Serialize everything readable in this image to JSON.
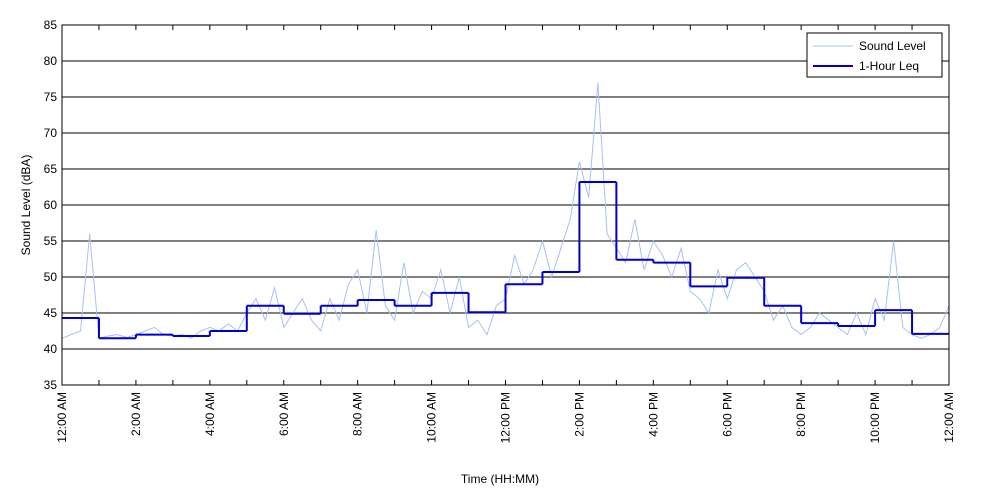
{
  "chart_data": {
    "type": "line",
    "xlabel": "Time (HH:MM)",
    "ylabel": "Sound Level (dBA)",
    "xlim": [
      0,
      24
    ],
    "ylim": [
      35,
      85
    ],
    "yticks": [
      35,
      40,
      45,
      50,
      55,
      60,
      65,
      70,
      75,
      80,
      85
    ],
    "xticks": [
      {
        "value": 0,
        "label": "12:00 AM"
      },
      {
        "value": 2,
        "label": "2:00 AM"
      },
      {
        "value": 4,
        "label": "4:00 AM"
      },
      {
        "value": 6,
        "label": "6:00 AM"
      },
      {
        "value": 8,
        "label": "8:00 AM"
      },
      {
        "value": 10,
        "label": "10:00 AM"
      },
      {
        "value": 12,
        "label": "12:00 PM"
      },
      {
        "value": 14,
        "label": "2:00 PM"
      },
      {
        "value": 16,
        "label": "4:00 PM"
      },
      {
        "value": 18,
        "label": "6:00 PM"
      },
      {
        "value": 20,
        "label": "8:00 PM"
      },
      {
        "value": 22,
        "label": "10:00 PM"
      },
      {
        "value": 24,
        "label": "12:00 AM"
      }
    ],
    "xminor_ticks": [
      1,
      3,
      5,
      7,
      9,
      11,
      13,
      15,
      17,
      19,
      21,
      23
    ],
    "grid": true,
    "legend": "upper right",
    "series": [
      {
        "name": "Sound Level",
        "color": "#a9c0f2",
        "style": "line",
        "x": [
          0,
          0.25,
          0.5,
          0.75,
          1,
          1.25,
          1.5,
          1.75,
          2,
          2.25,
          2.5,
          2.75,
          3,
          3.25,
          3.5,
          3.75,
          4,
          4.25,
          4.5,
          4.75,
          5,
          5.25,
          5.5,
          5.75,
          6,
          6.25,
          6.5,
          6.75,
          7,
          7.25,
          7.5,
          7.75,
          8,
          8.25,
          8.5,
          8.75,
          9,
          9.25,
          9.5,
          9.75,
          10,
          10.25,
          10.5,
          10.75,
          11,
          11.25,
          11.5,
          11.75,
          12,
          12.25,
          12.5,
          12.75,
          13,
          13.25,
          13.5,
          13.75,
          14,
          14.25,
          14.5,
          14.75,
          15,
          15.25,
          15.5,
          15.75,
          16,
          16.25,
          16.5,
          16.75,
          17,
          17.25,
          17.5,
          17.75,
          18,
          18.25,
          18.5,
          18.75,
          19,
          19.25,
          19.5,
          19.75,
          20,
          20.25,
          20.5,
          20.75,
          21,
          21.25,
          21.5,
          21.75,
          22,
          22.25,
          22.5,
          22.75,
          23,
          23.25,
          23.5,
          23.75,
          24
        ],
        "values": [
          41.5,
          42,
          42.5,
          56,
          41.5,
          41.8,
          42,
          41.6,
          42,
          42.5,
          43,
          42,
          41.8,
          42,
          41.5,
          42.5,
          43,
          42.5,
          43.5,
          42.5,
          45,
          47,
          44,
          48.5,
          43,
          45,
          47,
          44,
          42.5,
          47,
          44,
          49,
          51,
          45,
          56.5,
          46,
          44,
          52,
          45,
          48,
          47,
          51,
          45,
          50,
          43,
          44,
          42,
          46,
          47,
          53,
          49,
          51,
          55,
          50,
          54,
          58,
          66,
          61,
          77,
          56,
          54,
          52,
          58,
          51,
          55,
          53,
          50,
          54,
          48,
          47,
          45,
          51,
          47,
          51,
          52,
          50,
          48,
          44,
          46,
          43,
          42,
          43,
          45,
          44,
          43,
          42,
          45,
          42,
          47,
          44,
          55,
          43,
          42,
          41.5,
          42,
          43,
          46
        ]
      },
      {
        "name": "1-Hour Leq",
        "color": "#0000cc",
        "style": "step",
        "x": [
          0,
          1,
          2,
          3,
          4,
          5,
          6,
          7,
          8,
          9,
          10,
          11,
          12,
          13,
          14,
          15,
          16,
          17,
          18,
          19,
          20,
          21,
          22,
          23
        ],
        "values": [
          44.3,
          41.5,
          42,
          41.8,
          42.5,
          46,
          44.9,
          46,
          46.8,
          46,
          47.8,
          45.1,
          49,
          50.7,
          63.2,
          52.4,
          52,
          48.7,
          49.9,
          46,
          43.6,
          43.2,
          45.4,
          42.1
        ]
      }
    ]
  }
}
